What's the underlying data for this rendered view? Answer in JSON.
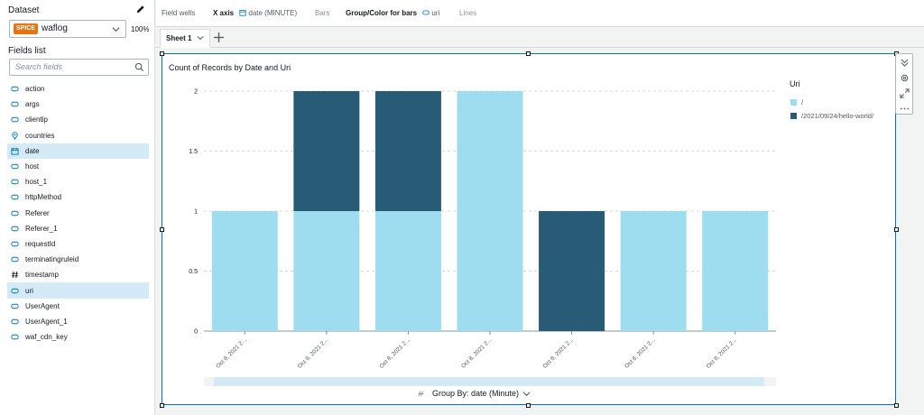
{
  "sidebar": {
    "dataset_label": "Dataset",
    "dataset_badge": "SPICE",
    "dataset_name": "waflog",
    "dataset_percent": "100%",
    "fields_label": "Fields list",
    "search_placeholder": "Search fields",
    "fields": [
      {
        "label": "action",
        "icon": "string-icon",
        "selected": false
      },
      {
        "label": "args",
        "icon": "string-icon",
        "selected": false
      },
      {
        "label": "clientip",
        "icon": "string-icon",
        "selected": false
      },
      {
        "label": "countries",
        "icon": "geo-icon",
        "selected": false
      },
      {
        "label": "date",
        "icon": "calendar-icon",
        "selected": true
      },
      {
        "label": "host",
        "icon": "string-icon",
        "selected": false
      },
      {
        "label": "host_1",
        "icon": "string-icon",
        "selected": false
      },
      {
        "label": "httpMethod",
        "icon": "string-icon",
        "selected": false
      },
      {
        "label": "Referer",
        "icon": "string-icon",
        "selected": false
      },
      {
        "label": "Referer_1",
        "icon": "string-icon",
        "selected": false
      },
      {
        "label": "requestId",
        "icon": "string-icon",
        "selected": false
      },
      {
        "label": "terminatingruleid",
        "icon": "string-icon",
        "selected": false
      },
      {
        "label": "timestamp",
        "icon": "hash-icon",
        "selected": false
      },
      {
        "label": "uri",
        "icon": "string-icon",
        "selected": true
      },
      {
        "label": "UserAgent",
        "icon": "string-icon",
        "selected": false
      },
      {
        "label": "UserAgent_1",
        "icon": "string-icon",
        "selected": false
      },
      {
        "label": "waf_cdn_key",
        "icon": "string-icon",
        "selected": false
      }
    ]
  },
  "wells": {
    "title": "Field wells",
    "xaxis_label": "X axis",
    "xaxis_value": "date (MINUTE)",
    "bars_label": "Bars",
    "group_label": "Group/Color for bars",
    "group_value": "uri",
    "lines_label": "Lines"
  },
  "tabs": {
    "sheet1": "Sheet 1"
  },
  "visual": {
    "title": "Count of Records by Date and Uri",
    "groupby": "Group By: date (Minute)"
  },
  "colors": {
    "light": "#9edcf0",
    "dark": "#275b76",
    "accent": "#0073bb",
    "spice": "#ec7211"
  },
  "chart_data": {
    "type": "bar",
    "stacked": true,
    "title": "Count of Records by Date and Uri",
    "categories": [
      "Oct 8, 2021 2...",
      "Oct 8, 2021 2...",
      "Oct 8, 2021 2...",
      "Oct 8, 2021 2...",
      "Oct 8, 2021 2...",
      "Oct 8, 2021 2...",
      "Oct 8, 2021 2..."
    ],
    "series": [
      {
        "name": "/",
        "color": "#9edcf0",
        "values": [
          1,
          1,
          1,
          2,
          0,
          1,
          1
        ]
      },
      {
        "name": "/2021/09/24/hello-world/",
        "color": "#275b76",
        "values": [
          0,
          1,
          1,
          0,
          1,
          0,
          0
        ]
      }
    ],
    "legend_title": "Uri",
    "legend_position": "right",
    "yticks": [
      "0",
      "0.5",
      "1",
      "1.5",
      "2"
    ],
    "ylim": [
      0,
      2
    ],
    "grid": "horizontal dashed"
  }
}
